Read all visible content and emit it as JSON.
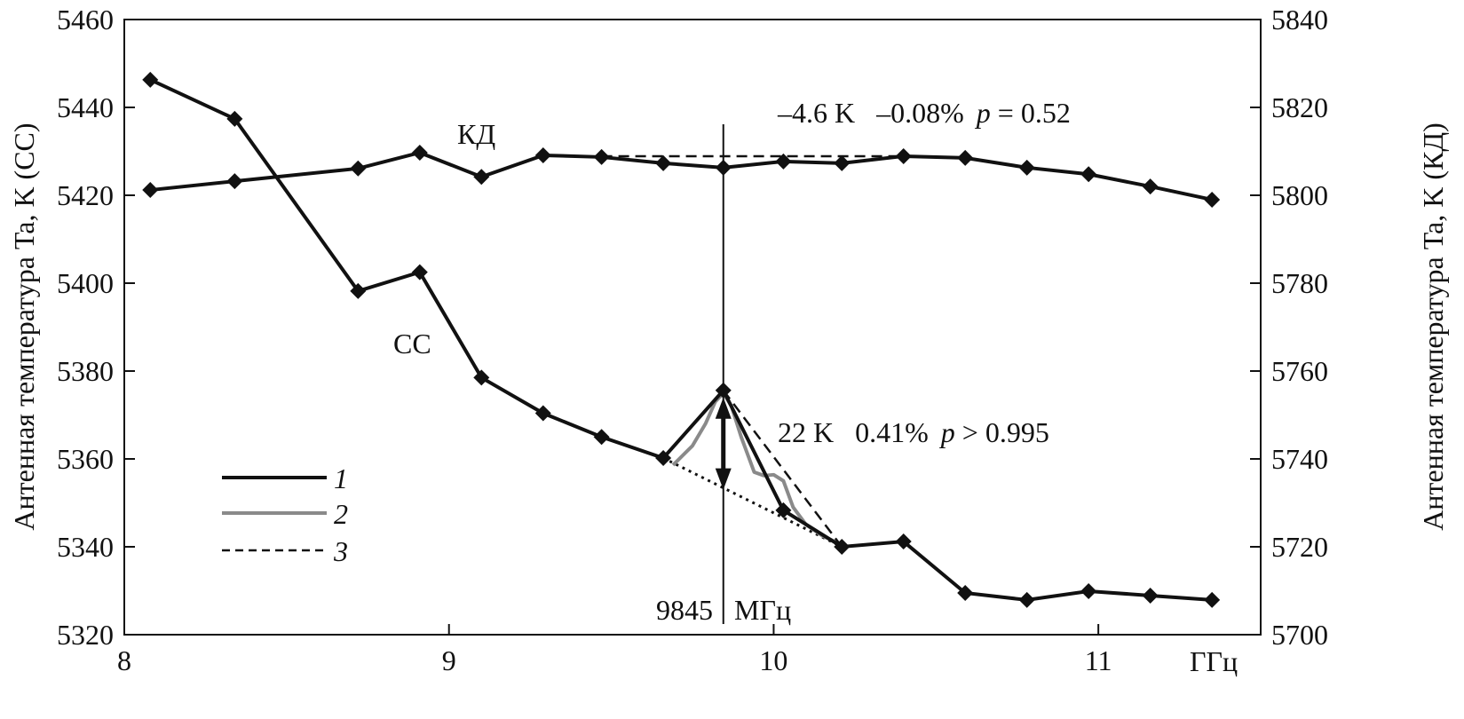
{
  "chart_data": {
    "type": "line",
    "x_unit_label": "ГГц",
    "xlim": [
      8,
      11.5
    ],
    "x_ticks": [
      "8",
      "9",
      "10",
      "11"
    ],
    "y_left": {
      "label": "Антенная температура Ta, K (CC)",
      "lim": [
        5320,
        5460
      ],
      "ticks": [
        "5320",
        "5340",
        "5360",
        "5380",
        "5400",
        "5420",
        "5440",
        "5460"
      ]
    },
    "y_right": {
      "label": "Антенная температура Ta, K (КД)",
      "lim": [
        5700,
        5840
      ],
      "ticks": [
        "5700",
        "5720",
        "5740",
        "5760",
        "5780",
        "5800",
        "5820",
        "5840"
      ]
    },
    "x": [
      8.08,
      8.34,
      8.72,
      8.91,
      9.1,
      9.29,
      9.47,
      9.66,
      9.845,
      10.03,
      10.21,
      10.4,
      10.59,
      10.78,
      10.97,
      11.16,
      11.35
    ],
    "series": [
      {
        "name": "СС",
        "axis": "left",
        "values": [
          5446.3,
          5437.4,
          5398.2,
          5402.5,
          5378.5,
          5370.4,
          5365.0,
          5360.2,
          5375.6,
          5348.3,
          5340.0,
          5341.2,
          5329.5,
          5327.9,
          5329.9,
          5328.9,
          5327.9
        ]
      },
      {
        "name": "КД",
        "axis": "right",
        "values": [
          5801.2,
          5803.2,
          5806.1,
          5809.7,
          5804.2,
          5809.1,
          5808.7,
          5807.3,
          5806.3,
          5807.7,
          5807.3,
          5808.9,
          5808.5,
          5806.3,
          5804.8,
          5802.0,
          5799.0
        ]
      }
    ],
    "curve2": {
      "x": [
        9.69,
        9.75,
        9.79,
        9.82,
        9.845,
        9.87,
        9.9,
        9.94,
        9.97,
        10.0,
        10.03,
        10.06,
        10.1,
        10.15,
        10.2
      ],
      "y": [
        5358.6,
        5363,
        5368,
        5373,
        5375,
        5372,
        5365,
        5357,
        5356.2,
        5356.4,
        5355,
        5349,
        5345,
        5342.5,
        5340.8
      ]
    },
    "curve3_cc": {
      "x": [
        9.845,
        10.21
      ],
      "y": [
        5375.6,
        5340.0
      ]
    },
    "curve3_kd": {
      "x": [
        9.47,
        10.4
      ],
      "y": [
        5808.9,
        5808.9
      ]
    },
    "dotted_baseline": {
      "x": [
        9.66,
        10.21
      ],
      "y": [
        5360.2,
        5340.0
      ]
    },
    "arrow": {
      "x": 9.845,
      "from": 5374,
      "to": 5353
    },
    "marker_line": {
      "x": 9.845,
      "label": "9845",
      "unit": "МГц"
    },
    "legend": {
      "placement": "lower-left",
      "entries": [
        "1",
        "2",
        "3"
      ]
    },
    "annotations": {
      "kd_series_label": "КД",
      "cc_series_label": "СС",
      "kd_stat": "–4.6 K   –0.08%",
      "kd_p": "p",
      "kd_pval": " = 0.52",
      "cc_stat": "22 K   0.41%",
      "cc_p": "p",
      "cc_pval": " > 0.995"
    },
    "colors": {
      "main": "#111111",
      "curve2": "#8a8a8a"
    }
  }
}
